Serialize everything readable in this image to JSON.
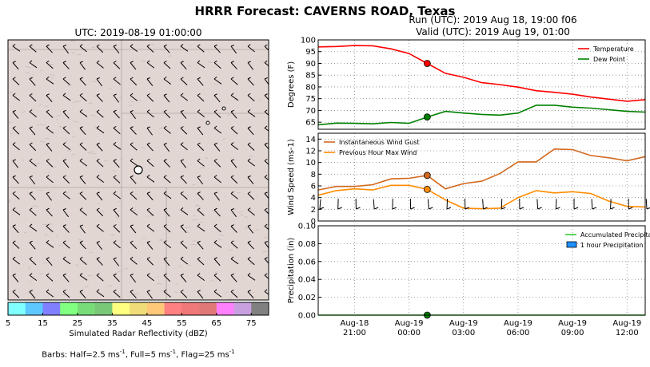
{
  "title": "HRRR Forecast: CAVERNS ROAD, Texas",
  "run_label": "Run (UTC): 2019 Aug 18, 19:00 f06",
  "valid_label": "Valid (UTC): 2019 Aug 19, 01:00",
  "map": {
    "title": "UTC: 2019-08-19 01:00:00",
    "colorbar": {
      "label": "Simulated Radar Reflectivity (dBZ)",
      "colors": [
        "#80ffff",
        "#5cc8ff",
        "#8080ff",
        "#80ff80",
        "#78dc78",
        "#78c878",
        "#ffff80",
        "#f0dc78",
        "#ffc878",
        "#ff8080",
        "#f07878",
        "#e07878",
        "#ff80ff",
        "#c8a0e0",
        "#808080"
      ],
      "ticks": [
        "5",
        "15",
        "25",
        "35",
        "45",
        "55",
        "65",
        "75"
      ]
    }
  },
  "footer": {
    "prefix": "Barbs: Half=2.5 ms",
    "sup1": "-1",
    "mid1": ", Full=5 ms",
    "sup2": "-1",
    "mid2": ", Flag=25 ms",
    "sup3": "-1"
  },
  "x_tick_labels": [
    [
      "Aug-18",
      "21:00"
    ],
    [
      "Aug-19",
      "00:00"
    ],
    [
      "Aug-19",
      "03:00"
    ],
    [
      "Aug-19",
      "06:00"
    ],
    [
      "Aug-19",
      "09:00"
    ],
    [
      "Aug-19",
      "12:00"
    ]
  ],
  "chart_data": [
    {
      "type": "line",
      "x": [
        "2019-08-18 19:00",
        "2019-08-18 20:00",
        "2019-08-18 21:00",
        "2019-08-18 22:00",
        "2019-08-18 23:00",
        "2019-08-19 00:00",
        "2019-08-19 01:00",
        "2019-08-19 02:00",
        "2019-08-19 03:00",
        "2019-08-19 04:00",
        "2019-08-19 05:00",
        "2019-08-19 06:00",
        "2019-08-19 07:00",
        "2019-08-19 08:00",
        "2019-08-19 09:00",
        "2019-08-19 10:00",
        "2019-08-19 11:00",
        "2019-08-19 12:00",
        "2019-08-19 13:00"
      ],
      "series": [
        {
          "name": "Temperature",
          "color": "#ff0000",
          "values": [
            97,
            97.2,
            97.6,
            97.5,
            96.2,
            94.2,
            90,
            85.8,
            84.1,
            81.8,
            81,
            79.9,
            78.4,
            77.7,
            76.9,
            75.7,
            74.8,
            73.9,
            74.6
          ]
        },
        {
          "name": "Dew Point",
          "color": "#008000",
          "values": [
            63.9,
            64.6,
            64.5,
            64.3,
            64.9,
            64.5,
            67.2,
            69.6,
            68.9,
            68.3,
            68,
            68.9,
            72.2,
            72.2,
            71.4,
            71,
            70.3,
            69.6,
            69.3
          ]
        }
      ],
      "ylabel": "Degrees (F)",
      "ylim": [
        62,
        100
      ],
      "y_ticks": [
        "65",
        "70",
        "75",
        "80",
        "85",
        "90",
        "95",
        "100"
      ],
      "legend": "top-right",
      "grid": true
    },
    {
      "type": "line",
      "x": [
        "2019-08-18 19:00",
        "2019-08-18 20:00",
        "2019-08-18 21:00",
        "2019-08-18 22:00",
        "2019-08-18 23:00",
        "2019-08-19 00:00",
        "2019-08-19 01:00",
        "2019-08-19 02:00",
        "2019-08-19 03:00",
        "2019-08-19 04:00",
        "2019-08-19 05:00",
        "2019-08-19 06:00",
        "2019-08-19 07:00",
        "2019-08-19 08:00",
        "2019-08-19 09:00",
        "2019-08-19 10:00",
        "2019-08-19 11:00",
        "2019-08-19 12:00",
        "2019-08-19 13:00"
      ],
      "series": [
        {
          "name": "Instantaneous Wind Gust",
          "color": "#d2691e",
          "values": [
            5.3,
            5.9,
            5.9,
            6.2,
            7.2,
            7.3,
            7.8,
            5.5,
            6.4,
            6.8,
            8.1,
            10.1,
            10.1,
            12.3,
            12.2,
            11.2,
            10.8,
            10.3,
            11
          ]
        },
        {
          "name": "Previous Hour Max Wind",
          "color": "#ff8c00",
          "values": [
            4.4,
            5.2,
            5.5,
            5.3,
            6.1,
            6.1,
            5.4,
            3.6,
            2.2,
            2.1,
            2.2,
            4,
            5.2,
            4.8,
            5,
            4.7,
            3.4,
            2.5,
            2.4
          ]
        }
      ],
      "ylabel": "Wind Speed (ms-1)",
      "ylim": [
        0,
        15
      ],
      "y_ticks": [
        "0",
        "2",
        "4",
        "6",
        "8",
        "10",
        "12",
        "14"
      ],
      "legend": "top-left",
      "grid": true
    },
    {
      "type": "bar",
      "x": [
        "2019-08-18 19:00",
        "2019-08-19 13:00"
      ],
      "series": [
        {
          "name": "Accumulated Precipitation",
          "color": "#32cd32",
          "values": [
            0,
            0
          ]
        },
        {
          "name": "1 hour Precipitation",
          "color": "#1e90ff",
          "values": [
            0,
            0
          ]
        }
      ],
      "ylabel": "Precipitation (in)",
      "ylim": [
        0,
        0.1
      ],
      "y_ticks": [
        "0.00",
        "0.02",
        "0.04",
        "0.06",
        "0.08",
        "0.10"
      ],
      "legend": "top-right",
      "grid": true
    }
  ]
}
